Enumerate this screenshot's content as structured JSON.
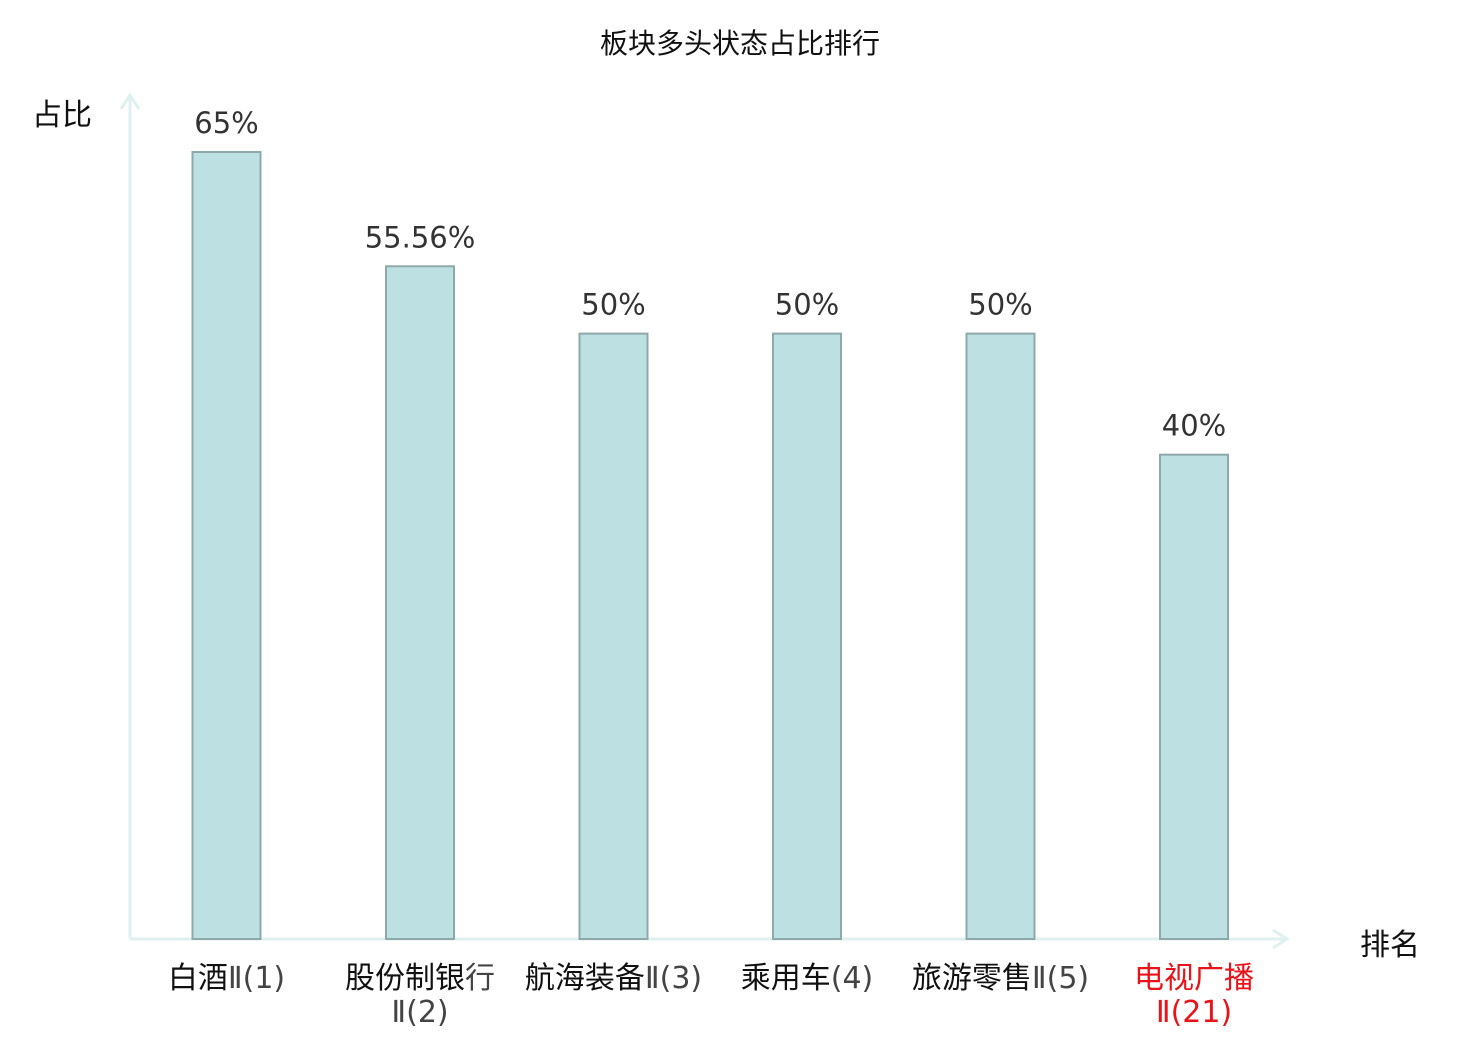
{
  "chart_data": {
    "type": "bar",
    "title": "板块多头状态占比排行",
    "ylabel": "占比",
    "xlabel": "排名",
    "ylim": [
      0,
      70
    ],
    "grid": false,
    "categories": [
      {
        "name": "白酒",
        "suffix": "Ⅱ(1)"
      },
      {
        "name": "股份制银",
        "suffix": "行Ⅱ(2)"
      },
      {
        "name": "航海装备",
        "suffix": "Ⅱ(3)"
      },
      {
        "name": "乘用车",
        "suffix": "(4)"
      },
      {
        "name": "旅游零售",
        "suffix": "Ⅱ(5)"
      },
      {
        "name": "电视广播",
        "suffix": "Ⅱ(21)"
      }
    ],
    "values": [
      65,
      55.56,
      50,
      50,
      50,
      40
    ],
    "value_labels": [
      "65%",
      "55.56%",
      "50%",
      "50%",
      "50%",
      "40%"
    ],
    "highlight_index": 5,
    "colors": {
      "bar_fill": "#bde0e2",
      "bar_stroke": "#8fa9ab",
      "axis": "#dff0ef",
      "highlight_text": "#e8141a"
    }
  }
}
